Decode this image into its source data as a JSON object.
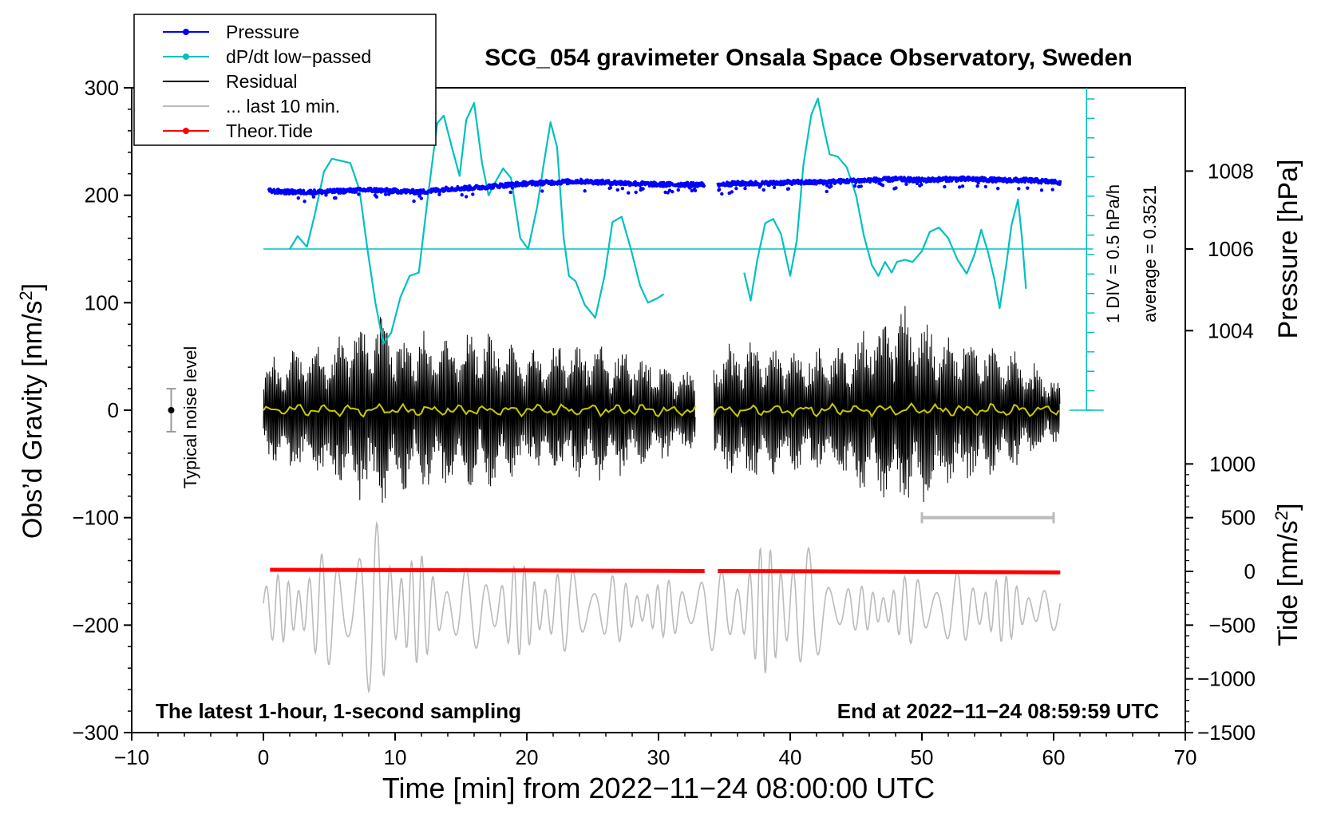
{
  "chart_data": {
    "type": "line",
    "title": "SCG_054 gravimeter Onsala Space Observatory, Sweden",
    "xlabel": "Time [min] from 2022−11−24 08:00:00 UTC",
    "ylabel_left": "Obs’d Gravity [nm/s",
    "ylabel_left_sup": "2",
    "ylabel_left_close": "]",
    "ylabel_right_pressure": "Pressure [hPa]",
    "ylabel_right_tide": "Tide [nm/s",
    "ylabel_right_tide_sup": "2",
    "ylabel_right_tide_close": "]",
    "xlim": [
      -10,
      70
    ],
    "ylim_left": [
      -300,
      300
    ],
    "x_ticks": [
      {
        "value": -10,
        "label": "−10"
      },
      {
        "value": 0,
        "label": "0"
      },
      {
        "value": 10,
        "label": "10"
      },
      {
        "value": 20,
        "label": "20"
      },
      {
        "value": 30,
        "label": "30"
      },
      {
        "value": 40,
        "label": "40"
      },
      {
        "value": 50,
        "label": "50"
      },
      {
        "value": 60,
        "label": "60"
      },
      {
        "value": 70,
        "label": "70"
      }
    ],
    "y_ticks_left": [
      {
        "value": 300,
        "label": "300"
      },
      {
        "value": 200,
        "label": "200"
      },
      {
        "value": 100,
        "label": "100"
      },
      {
        "value": 0,
        "label": "0"
      },
      {
        "value": -100,
        "label": "−100"
      },
      {
        "value": -200,
        "label": "−200"
      },
      {
        "value": -300,
        "label": "−300"
      }
    ],
    "pressure_axis": {
      "ticks": [
        {
          "value": 1008,
          "label": "1008",
          "gravity_equiv": 222.5
        },
        {
          "value": 1006,
          "label": "1006",
          "gravity_equiv": 150
        },
        {
          "value": 1004,
          "label": "1004",
          "gravity_equiv": 74
        }
      ]
    },
    "tide_axis": {
      "ticks": [
        {
          "value": 1000,
          "label": "1000",
          "gravity_equiv": -50
        },
        {
          "value": 500,
          "label": "500",
          "gravity_equiv": -100
        },
        {
          "value": 0,
          "label": "0",
          "gravity_equiv": -150
        },
        {
          "value": -500,
          "label": "−500",
          "gravity_equiv": -200
        },
        {
          "value": -1000,
          "label": "−1000",
          "gravity_equiv": -250
        },
        {
          "value": -1500,
          "label": "−1500",
          "gravity_equiv": -300
        }
      ]
    },
    "legend": {
      "placement": "top-left",
      "entries": [
        {
          "label": "Pressure",
          "color": "#0000ff",
          "marker": true
        },
        {
          "label": "dP/dt low−passed",
          "color": "#00c0c0",
          "marker": true
        },
        {
          "label": "Residual",
          "color": "#000000",
          "marker": false
        },
        {
          "label": "... last 10 min.",
          "color": "#bbbbbb",
          "marker": false
        },
        {
          "label": "Theor.Tide",
          "color": "#ff0000",
          "marker": true
        }
      ]
    },
    "annotations": {
      "bottom_left": "The latest 1-hour, 1-second sampling",
      "bottom_right": "End at 2022−11−24 08:59:59 UTC",
      "noise_label": "Typical noise level",
      "div_label": "1 DIV = 0.5 hPa/h",
      "avg_label": "average = 0.3521"
    },
    "noise_bar": {
      "x": -7,
      "center": 0,
      "half_range": 20
    },
    "last10_bar": {
      "x_start": 50,
      "x_end": 60,
      "y": -100
    },
    "colors": {
      "pressure": "#0000ff",
      "dpdt": "#00c0c0",
      "residual": "#000000",
      "residual_mean": "#c8c800",
      "last10": "#bbbbbb",
      "tide": "#ff0000"
    },
    "series": [
      {
        "name": "Pressure",
        "note": "values in gravity-axis equivalent units; gap 33.5–34.5 min",
        "segments": [
          {
            "x": [
              0.4,
              2,
              4,
              6,
              8,
              10,
              12,
              14,
              16,
              18,
              20,
              22,
              24,
              26,
              28,
              30,
              32,
              33.5
            ],
            "y": [
              204,
              203,
              203,
              204,
              205,
              204,
              203,
              206,
              207,
              209,
              211,
              212,
              213,
              212,
              211,
              210,
              210,
              210
            ]
          },
          {
            "x": [
              34.5,
              36,
              38,
              40,
              42,
              44,
              46,
              48,
              50,
              52,
              54,
              56,
              58,
              60.5
            ],
            "y": [
              210,
              211,
              211,
              212,
              212,
              213,
              214,
              215,
              214,
              215,
              215,
              214,
              214,
              212
            ]
          }
        ]
      },
      {
        "name": "dP/dt low−passed",
        "note": "values in gravity-axis equivalent units; average line at 150",
        "baseline": 150,
        "baseline_x": [
          0,
          63
        ],
        "segments": [
          {
            "x": [
              2,
              2.6,
              3.3,
              3.9,
              4.6,
              5.2,
              5.9,
              6.6,
              7.3,
              7.9,
              8.5,
              9.1,
              9.7,
              10.4,
              11.1,
              11.8,
              12.5,
              13.2,
              13.7,
              14.3,
              14.9,
              15.4,
              16,
              16.6,
              17.1,
              17.6,
              18.2,
              18.8,
              19.5,
              20.1,
              20.8,
              21.3,
              21.8,
              22.3,
              22.8,
              23.2,
              23.7,
              24.4,
              25.2,
              25.9,
              26.5,
              27.2,
              27.9,
              28.6,
              29.2,
              29.9,
              30.4
            ],
            "y": [
              150,
              162,
              152,
              182,
              222,
              234,
              232,
              230,
              205,
              150,
              100,
              62,
              72,
              105,
              125,
              128,
              200,
              267,
              274,
              245,
              218,
              270,
              286,
              230,
              200,
              212,
              225,
              216,
              160,
              150,
              190,
              230,
              268,
              245,
              160,
              125,
              120,
              98,
              86,
              125,
              175,
              180,
              150,
              116,
              100,
              104,
              108
            ]
          },
          {
            "x": [
              36.5,
              37,
              37.5,
              38.1,
              38.7,
              39.3,
              40,
              40.5,
              41,
              41.6,
              42.1,
              42.5,
              43,
              43.6,
              44.3,
              45,
              45.6,
              46.2,
              46.7,
              47.2,
              47.7,
              48.1,
              48.7,
              49.3,
              50,
              50.6,
              51.3,
              52,
              52.7,
              53.4,
              54,
              54.5,
              55,
              55.5,
              55.9,
              56.4,
              56.8,
              57.3,
              57.6,
              57.9
            ],
            "y": [
              128,
              102,
              140,
              174,
              178,
              164,
              125,
              158,
              228,
              275,
              290,
              265,
              238,
              236,
              226,
              200,
              162,
              135,
              125,
              138,
              128,
              138,
              140,
              138,
              148,
              166,
              170,
              160,
              140,
              127,
              145,
              168,
              148,
              122,
              95,
              135,
              172,
              196,
              160,
              113
            ]
          }
        ]
      },
      {
        "name": "Residual",
        "note": "oscillating signal roughly ±80 nm/s² envelope, peaks near 8–10 and 48–49 min",
        "x_range": [
          0,
          60.5
        ],
        "gap": [
          32.8,
          34.2
        ],
        "envelope_points": {
          "x": [
            0,
            2,
            5,
            8,
            9,
            10,
            13,
            17,
            20,
            24,
            28,
            32,
            35,
            38,
            42,
            46,
            48.5,
            52,
            56,
            60.5
          ],
          "y": [
            45,
            60,
            70,
            90,
            100,
            80,
            75,
            80,
            60,
            70,
            60,
            40,
            65,
            70,
            60,
            80,
            105,
            75,
            65,
            30
          ]
        }
      },
      {
        "name": "... last 10 min.",
        "note": "gray trace, oscillation centered near −185 nm/s²",
        "center": -185,
        "envelope_points": {
          "x": [
            0,
            3,
            6,
            8,
            9,
            10,
            13,
            17,
            21,
            25,
            30,
            33,
            37,
            39,
            40,
            42,
            45,
            50,
            55,
            60
          ],
          "y": [
            25,
            45,
            60,
            80,
            85,
            70,
            40,
            40,
            45,
            35,
            25,
            35,
            50,
            70,
            75,
            50,
            20,
            35,
            35,
            20
          ]
        }
      },
      {
        "name": "Theor.Tide",
        "note": "values in gravity-axis equivalent units; gap 33.5–34.5 min",
        "segments": [
          {
            "x": [
              0.5,
              10,
              20,
              30,
              33.5
            ],
            "y": [
              -148.5,
              -148.8,
              -149.1,
              -149.5,
              -149.6
            ]
          },
          {
            "x": [
              34.5,
              40,
              50,
              60.5
            ],
            "y": [
              -149.6,
              -149.8,
              -150.4,
              -151
            ]
          }
        ]
      }
    ]
  }
}
